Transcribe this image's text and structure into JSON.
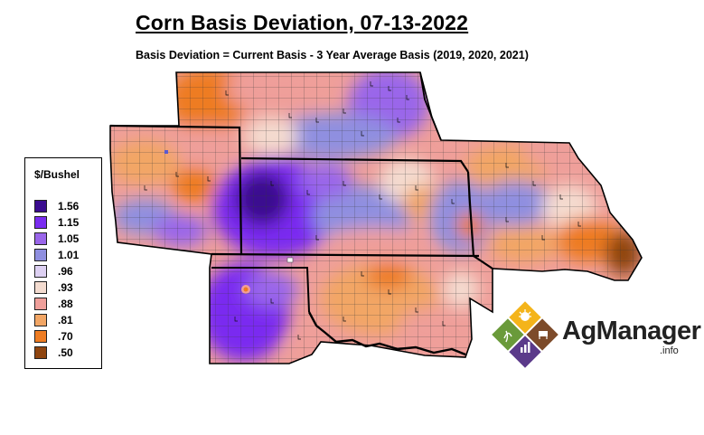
{
  "title": "Corn Basis Deviation, 07-13-2022",
  "subtitle": "Basis Deviation = Current Basis - 3 Year Average Basis (2019, 2020, 2021)",
  "legend": {
    "title": "$/Bushel",
    "items": [
      {
        "label": "1.56",
        "color": "#3a0c8f"
      },
      {
        "label": "1.15",
        "color": "#7a2cf0"
      },
      {
        "label": "1.05",
        "color": "#9a66ea"
      },
      {
        "label": "1.01",
        "color": "#8f8fe0"
      },
      {
        "label": ".96",
        "color": "#ddd0f2"
      },
      {
        "label": ".93",
        "color": "#f4dcd0"
      },
      {
        "label": ".88",
        "color": "#ef9f9a"
      },
      {
        "label": ".81",
        "color": "#f2a665"
      },
      {
        "label": ".70",
        "color": "#ee7c22"
      },
      {
        "label": ".50",
        "color": "#8f4510"
      }
    ]
  },
  "logo": {
    "wordmark": "AgManager",
    "suffix": ".info"
  }
}
